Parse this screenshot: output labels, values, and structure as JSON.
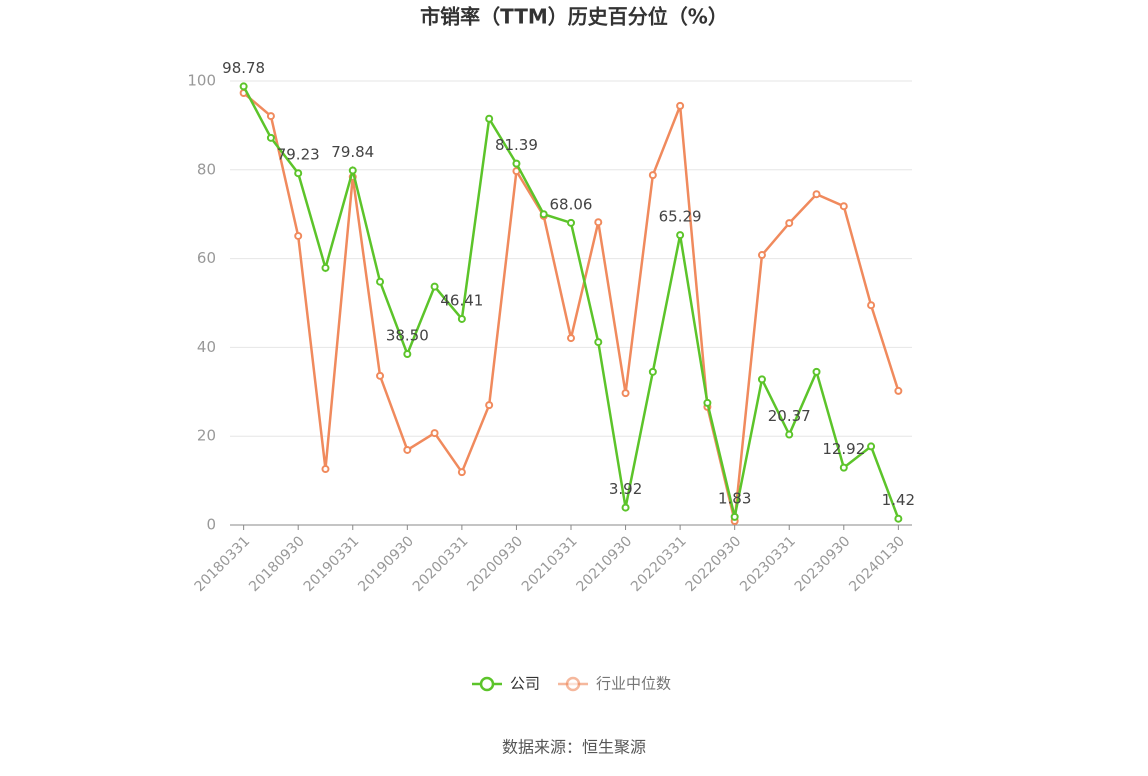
{
  "chart_data": {
    "type": "line",
    "title": "市销率（TTM）历史百分位（%）",
    "source": "数据来源：恒生聚源",
    "categories": [
      "20180331",
      null,
      "20180930",
      null,
      "20190331",
      null,
      "20190930",
      null,
      "20200331",
      null,
      "20200930",
      null,
      "20210331",
      null,
      "20210930",
      null,
      "20220331",
      null,
      "20220930",
      null,
      "20230331",
      null,
      "20230930",
      null,
      "20240130"
    ],
    "series": [
      {
        "name": "公司",
        "color": "#5cc42a",
        "values": [
          98.78,
          87.2,
          79.23,
          57.9,
          79.84,
          54.8,
          38.5,
          53.7,
          46.41,
          91.5,
          81.39,
          70.0,
          68.06,
          41.2,
          3.92,
          34.5,
          65.29,
          27.5,
          1.83,
          32.8,
          20.37,
          34.5,
          12.92,
          17.7,
          1.42
        ],
        "value_labels": [
          "98.78",
          null,
          "79.23",
          null,
          "79.84",
          null,
          "38.50",
          null,
          "46.41",
          null,
          "81.39",
          null,
          "68.06",
          null,
          "3.92",
          null,
          "65.29",
          null,
          "1.83",
          null,
          "20.37",
          null,
          "12.92",
          null,
          "1.42"
        ]
      },
      {
        "name": "行业中位数",
        "color": "#f08a5d",
        "values": [
          97.3,
          92.1,
          65.1,
          12.6,
          78.4,
          33.6,
          16.9,
          20.7,
          11.9,
          27.0,
          79.7,
          69.6,
          42.1,
          68.2,
          29.7,
          78.8,
          94.4,
          26.6,
          0.9,
          60.8,
          68.0,
          74.5,
          71.8,
          49.5,
          30.2
        ]
      }
    ],
    "ylim": [
      0,
      100
    ],
    "yticks": [
      0,
      20,
      40,
      60,
      80,
      100
    ],
    "grid": true
  }
}
